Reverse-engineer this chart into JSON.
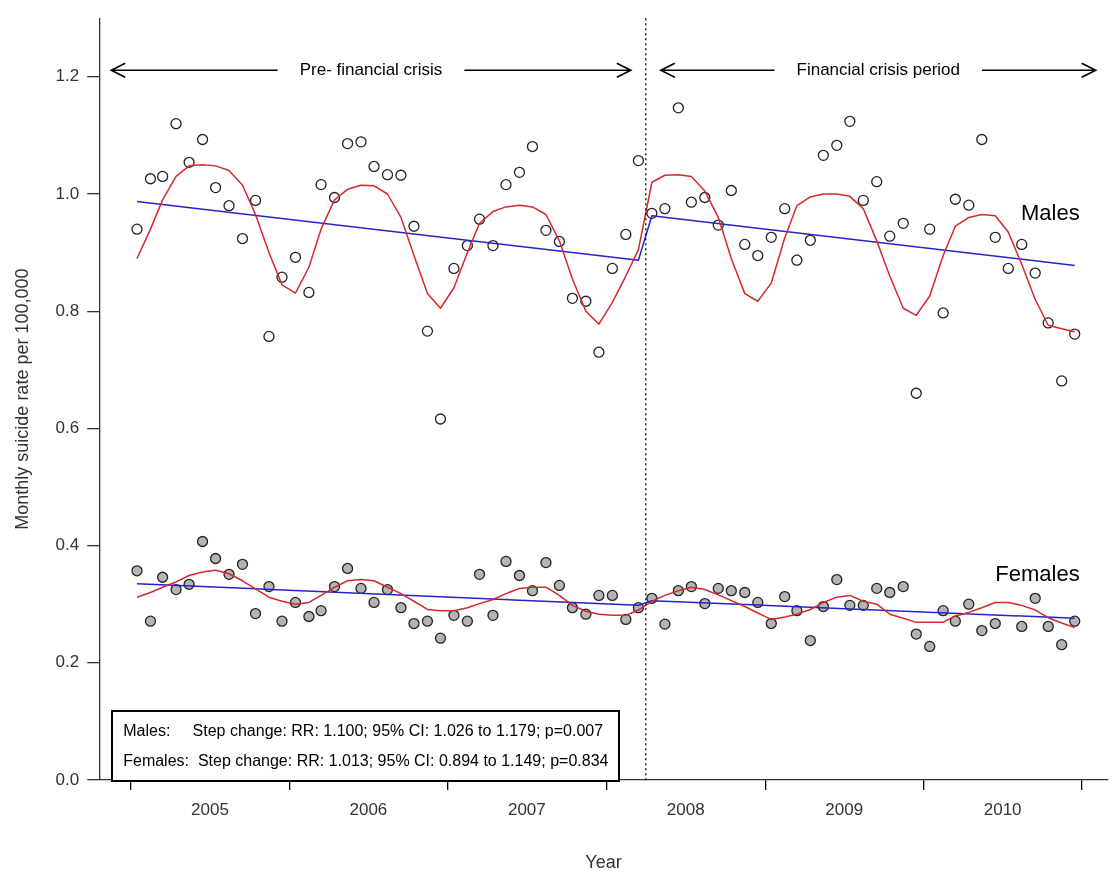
{
  "chart_data": {
    "type": "scatter",
    "xlabel": "Year",
    "ylabel": "Monthly suicide rate per 100,000",
    "x": [
      "2005-01-15",
      "2005-02-15",
      "2005-03-15",
      "2005-04-15",
      "2005-05-15",
      "2005-06-15",
      "2005-07-15",
      "2005-08-15",
      "2005-09-15",
      "2005-10-15",
      "2005-11-15",
      "2005-12-15",
      "2006-01-15",
      "2006-02-15",
      "2006-03-15",
      "2006-04-15",
      "2006-05-15",
      "2006-06-15",
      "2006-07-15",
      "2006-08-15",
      "2006-09-15",
      "2006-10-15",
      "2006-11-15",
      "2006-12-15",
      "2007-01-15",
      "2007-02-15",
      "2007-03-15",
      "2007-04-15",
      "2007-05-15",
      "2007-06-15",
      "2007-07-15",
      "2007-08-15",
      "2007-09-15",
      "2007-10-15",
      "2007-11-15",
      "2007-12-15",
      "2008-01-15",
      "2008-02-15",
      "2008-03-15",
      "2008-04-15",
      "2008-05-15",
      "2008-06-15",
      "2008-07-15",
      "2008-08-15",
      "2008-09-15",
      "2008-10-15",
      "2008-11-15",
      "2008-12-15",
      "2009-01-15",
      "2009-02-15",
      "2009-03-15",
      "2009-04-15",
      "2009-05-15",
      "2009-06-15",
      "2009-07-15",
      "2009-08-15",
      "2009-09-15",
      "2009-10-15",
      "2009-11-15",
      "2009-12-15",
      "2010-01-15",
      "2010-02-15",
      "2010-03-15",
      "2010-04-15",
      "2010-05-15",
      "2010-06-15",
      "2010-07-15",
      "2010-08-15",
      "2010-09-15",
      "2010-10-15",
      "2010-11-15",
      "2010-12-15"
    ],
    "series": [
      {
        "name": "Males",
        "marker": "circle",
        "color": "#ffffff",
        "values": [
          0.94,
          1.026,
          1.03,
          1.12,
          1.054,
          1.093,
          1.011,
          0.98,
          0.924,
          0.989,
          0.757,
          0.858,
          0.892,
          0.832,
          1.016,
          0.994,
          1.086,
          1.089,
          1.047,
          1.033,
          1.032,
          0.945,
          0.766,
          0.616,
          0.873,
          0.912,
          0.957,
          0.912,
          1.016,
          1.037,
          1.081,
          0.938,
          0.919,
          0.822,
          0.817,
          0.73,
          0.873,
          0.931,
          1.057,
          0.967,
          0.975,
          1.147,
          0.986,
          0.994,
          0.947,
          1.006,
          0.914,
          0.895,
          0.926,
          0.975,
          0.887,
          0.921,
          1.066,
          1.083,
          1.124,
          0.989,
          1.021,
          0.928,
          0.95,
          0.66,
          0.94,
          0.797,
          0.991,
          0.981,
          1.093,
          0.926,
          0.873,
          0.914,
          0.865,
          0.78,
          0.681,
          0.761
        ]
      },
      {
        "type": "line",
        "marker": "none",
        "line_style": "solid",
        "color": "#d42a2a",
        "values": [
          0.89,
          0.94,
          0.99,
          1.03,
          1.048,
          1.05,
          1.048,
          1.04,
          1.015,
          0.965,
          0.9,
          0.845,
          0.831,
          0.875,
          0.94,
          0.99,
          1.008,
          1.015,
          1.014,
          1.0,
          0.96,
          0.895,
          0.83,
          0.805,
          0.84,
          0.9,
          0.95,
          0.97,
          0.978,
          0.981,
          0.978,
          0.965,
          0.92,
          0.855,
          0.8,
          0.778,
          0.815,
          0.86,
          0.905,
          1.02,
          1.032,
          1.033,
          1.03,
          1.005,
          0.96,
          0.89,
          0.83,
          0.817,
          0.848,
          0.925,
          0.98,
          0.995,
          1.0,
          1.0,
          0.996,
          0.975,
          0.92,
          0.86,
          0.805,
          0.793,
          0.826,
          0.895,
          0.945,
          0.96,
          0.965,
          0.963,
          0.935,
          0.88,
          0.82,
          0.776,
          0.77,
          0.765
        ]
      },
      {
        "type": "line",
        "marker": "none",
        "line_style": "solid",
        "color": "#2323c8",
        "x": [
          "2005-01-15",
          "2008-03-15",
          "2008-04-15",
          "2010-12-15"
        ],
        "values": [
          0.987,
          0.887,
          0.963,
          0.878
        ]
      },
      {
        "name": "Females",
        "marker": "circle",
        "color": "#b4b4b4",
        "values": [
          0.357,
          0.271,
          0.346,
          0.325,
          0.334,
          0.407,
          0.378,
          0.351,
          0.368,
          0.284,
          0.33,
          0.271,
          0.303,
          0.279,
          0.289,
          0.33,
          0.361,
          0.327,
          0.303,
          0.325,
          0.294,
          0.267,
          0.271,
          0.242,
          0.281,
          0.271,
          0.351,
          0.281,
          0.373,
          0.349,
          0.323,
          0.371,
          0.332,
          0.294,
          0.283,
          0.315,
          0.315,
          0.274,
          0.294,
          0.31,
          0.266,
          0.323,
          0.33,
          0.301,
          0.327,
          0.323,
          0.32,
          0.303,
          0.267,
          0.313,
          0.289,
          0.238,
          0.296,
          0.342,
          0.298,
          0.298,
          0.327,
          0.32,
          0.33,
          0.249,
          0.228,
          0.289,
          0.271,
          0.3,
          0.255,
          0.267,
          null,
          0.262,
          0.31,
          0.262,
          0.231,
          0.271
        ]
      },
      {
        "type": "line",
        "marker": "none",
        "line_style": "solid",
        "color": "#d42a2a",
        "values": [
          0.312,
          0.32,
          0.329,
          0.338,
          0.349,
          0.355,
          0.358,
          0.352,
          0.34,
          0.326,
          0.312,
          0.305,
          0.3,
          0.303,
          0.315,
          0.329,
          0.34,
          0.342,
          0.34,
          0.329,
          0.318,
          0.305,
          0.291,
          0.289,
          0.289,
          0.294,
          0.301,
          0.308,
          0.318,
          0.327,
          0.329,
          0.329,
          0.315,
          0.298,
          0.288,
          0.283,
          0.281,
          0.281,
          0.29,
          0.305,
          0.315,
          0.323,
          0.329,
          0.325,
          0.316,
          0.306,
          0.296,
          0.285,
          0.274,
          0.278,
          0.283,
          0.291,
          0.303,
          0.312,
          0.315,
          0.305,
          0.3,
          0.283,
          0.276,
          0.269,
          0.269,
          0.269,
          0.28,
          0.286,
          0.294,
          0.303,
          0.303,
          0.298,
          0.29,
          0.277,
          0.268,
          0.26
        ]
      },
      {
        "type": "line",
        "marker": "none",
        "line_style": "solid",
        "color": "#2323c8",
        "x": [
          "2005-01-15",
          "2008-03-15",
          "2008-04-15",
          "2010-12-15"
        ],
        "values": [
          0.335,
          0.298,
          0.306,
          0.276
        ]
      }
    ],
    "xlim": [
      "2004-10-20",
      "2011-03-01"
    ],
    "xticks": [
      {
        "value": "2005-01-01",
        "label": null
      },
      {
        "value": "2005-07-02",
        "label": "2005"
      },
      {
        "value": "2006-01-01",
        "label": null
      },
      {
        "value": "2006-07-02",
        "label": "2006"
      },
      {
        "value": "2007-01-01",
        "label": null
      },
      {
        "value": "2007-07-02",
        "label": "2007"
      },
      {
        "value": "2008-01-01",
        "label": null
      },
      {
        "value": "2008-07-02",
        "label": "2008"
      },
      {
        "value": "2009-01-01",
        "label": null
      },
      {
        "value": "2009-07-02",
        "label": "2009"
      },
      {
        "value": "2010-01-01",
        "label": null
      },
      {
        "value": "2010-07-02",
        "label": "2010"
      },
      {
        "value": "2011-01-01",
        "label": null
      }
    ],
    "ylim": [
      0,
      1.3
    ],
    "yticks": [
      {
        "value": 0,
        "label": "0.0"
      },
      0.2,
      0.4,
      0.6,
      0.8,
      {
        "value": 1,
        "label": "1.0"
      },
      1.2
    ],
    "ref_lines": [
      {
        "axis": "x",
        "value": "2008-04-01",
        "color": "#000000",
        "line_style": "dotted"
      }
    ],
    "annotations": [
      "Pre- financial crisis",
      "Financial crisis period",
      "Males:     Step change: RR: 1.100; 95% CI: 1.026 to 1.179; p=0.007",
      "Females:  Step change: RR: 1.013; 95% CI: 0.894 to 1.149; p=0.834"
    ],
    "grid": false,
    "legend": false
  }
}
